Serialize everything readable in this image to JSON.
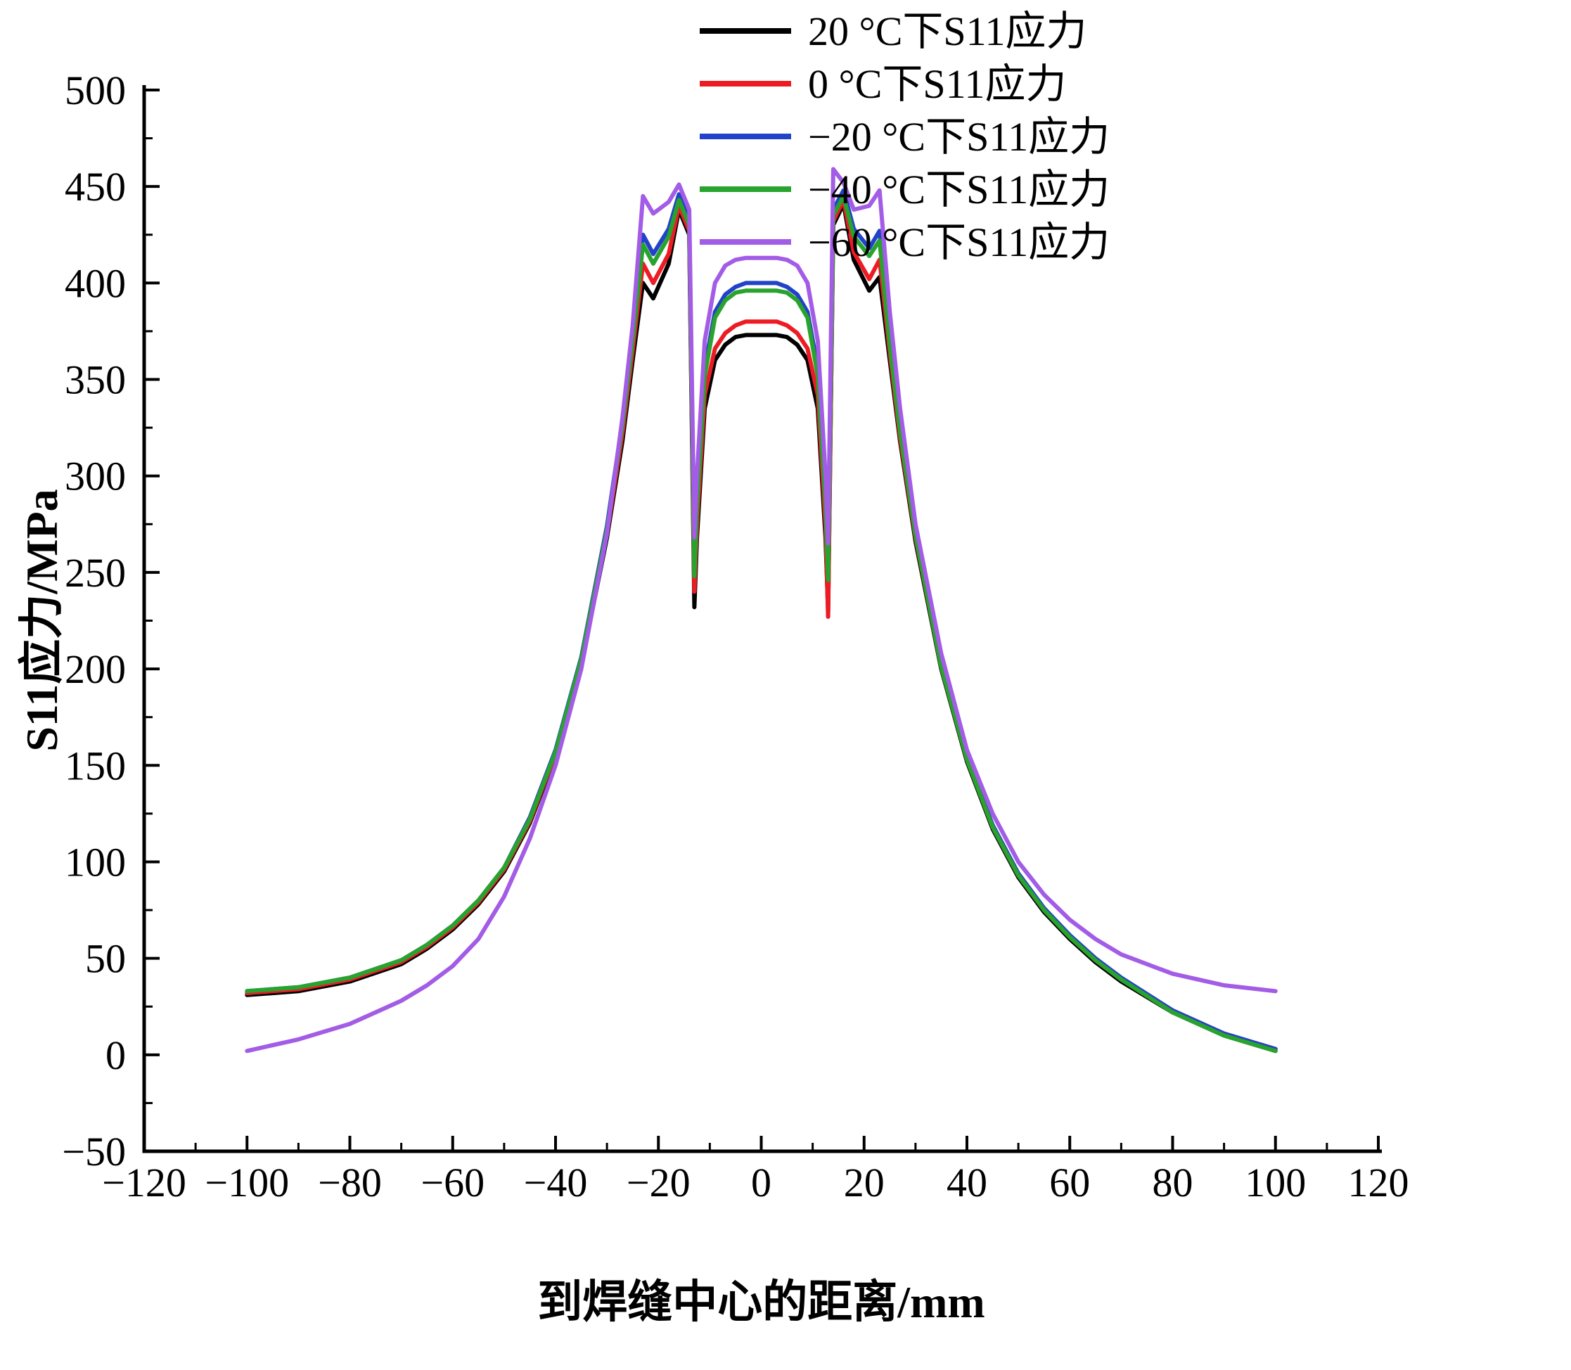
{
  "chart_data": {
    "type": "line",
    "title": "",
    "xlabel": "到焊缝中心的距离/mm",
    "ylabel": "S11应力/MPa",
    "xlim": [
      -120,
      120
    ],
    "ylim": [
      -50,
      500
    ],
    "grid": false,
    "legend_position": "top-right",
    "axis_color": "#000000",
    "background": "#ffffff",
    "x_ticks": {
      "values": [
        -120,
        -100,
        -80,
        -60,
        -40,
        -20,
        0,
        20,
        40,
        60,
        80,
        100,
        120
      ],
      "labels": [
        "−120",
        "−100",
        "−80",
        "−60",
        "−40",
        "−20",
        "0",
        "20",
        "40",
        "60",
        "80",
        "100",
        "120"
      ]
    },
    "y_ticks": {
      "values": [
        -50,
        0,
        50,
        100,
        150,
        200,
        250,
        300,
        350,
        400,
        450,
        500
      ],
      "labels": [
        "−50",
        "0",
        "50",
        "100",
        "150",
        "200",
        "250",
        "300",
        "350",
        "400",
        "450",
        "500"
      ]
    },
    "x": [
      -100,
      -90,
      -80,
      -70,
      -65,
      -60,
      -55,
      -50,
      -45,
      -40,
      -35,
      -30,
      -27,
      -25,
      -23,
      -21,
      -18,
      -16,
      -14,
      -13,
      -12.5,
      -11,
      -9,
      -7,
      -5,
      -3,
      0,
      3,
      5,
      7,
      9,
      11,
      12.5,
      13,
      14,
      16,
      18,
      21,
      23,
      25,
      27,
      30,
      35,
      40,
      45,
      50,
      55,
      60,
      65,
      70,
      80,
      90,
      100
    ],
    "series": [
      {
        "id": "s11-20c",
        "name": "20 °C下S11应力",
        "color": "#000000",
        "values": [
          31,
          33,
          38,
          47,
          55,
          65,
          78,
          95,
          120,
          155,
          202,
          268,
          318,
          360,
          400,
          392,
          410,
          438,
          425,
          232,
          268,
          335,
          360,
          368,
          372,
          373,
          373,
          373,
          372,
          368,
          360,
          335,
          268,
          230,
          430,
          441,
          412,
          396,
          403,
          360,
          318,
          266,
          200,
          152,
          117,
          92,
          74,
          60,
          48,
          38,
          22,
          10,
          2
        ]
      },
      {
        "id": "s11-0c",
        "name": "0 °C下S11应力",
        "color": "#ed1c24",
        "values": [
          32,
          34,
          39,
          48,
          56,
          66,
          79,
          96,
          121,
          156,
          203,
          270,
          322,
          365,
          410,
          400,
          415,
          440,
          427,
          240,
          275,
          342,
          366,
          374,
          378,
          380,
          380,
          380,
          378,
          374,
          366,
          342,
          275,
          227,
          432,
          443,
          416,
          402,
          412,
          364,
          320,
          268,
          201,
          153,
          118,
          93,
          75,
          61,
          49,
          39,
          23,
          11,
          3
        ]
      },
      {
        "id": "s11-minus20c",
        "name": "−20 °C下S11应力",
        "color": "#2243c9",
        "values": [
          33,
          35,
          40,
          49,
          57,
          67,
          80,
          97,
          123,
          158,
          206,
          274,
          328,
          372,
          425,
          415,
          428,
          446,
          432,
          252,
          288,
          356,
          385,
          394,
          398,
          400,
          400,
          400,
          398,
          394,
          385,
          356,
          288,
          250,
          438,
          448,
          428,
          418,
          427,
          370,
          325,
          270,
          202,
          154,
          119,
          94,
          76,
          62,
          50,
          40,
          23,
          11,
          3
        ]
      },
      {
        "id": "s11-minus40c",
        "name": "−40 °C下S11应力",
        "color": "#28a32d",
        "values": [
          33,
          35,
          40,
          49,
          57,
          67,
          80,
          97,
          122,
          157,
          205,
          272,
          326,
          370,
          420,
          410,
          424,
          443,
          430,
          248,
          284,
          352,
          382,
          391,
          395,
          396,
          396,
          396,
          395,
          391,
          382,
          352,
          284,
          246,
          435,
          445,
          424,
          414,
          422,
          368,
          323,
          269,
          201,
          153,
          118,
          93,
          75,
          61,
          49,
          39,
          22,
          10,
          2
        ]
      },
      {
        "id": "s11-minus60c",
        "name": "−60 °C下S11应力",
        "color": "#a35ce6",
        "values": [
          2,
          8,
          16,
          28,
          36,
          46,
          60,
          82,
          112,
          150,
          200,
          270,
          330,
          378,
          445,
          436,
          442,
          451,
          438,
          268,
          300,
          370,
          400,
          409,
          412,
          413,
          413,
          413,
          412,
          409,
          400,
          370,
          300,
          265,
          459,
          452,
          438,
          440,
          448,
          385,
          335,
          275,
          208,
          158,
          125,
          100,
          83,
          70,
          60,
          52,
          42,
          36,
          33
        ]
      }
    ]
  }
}
